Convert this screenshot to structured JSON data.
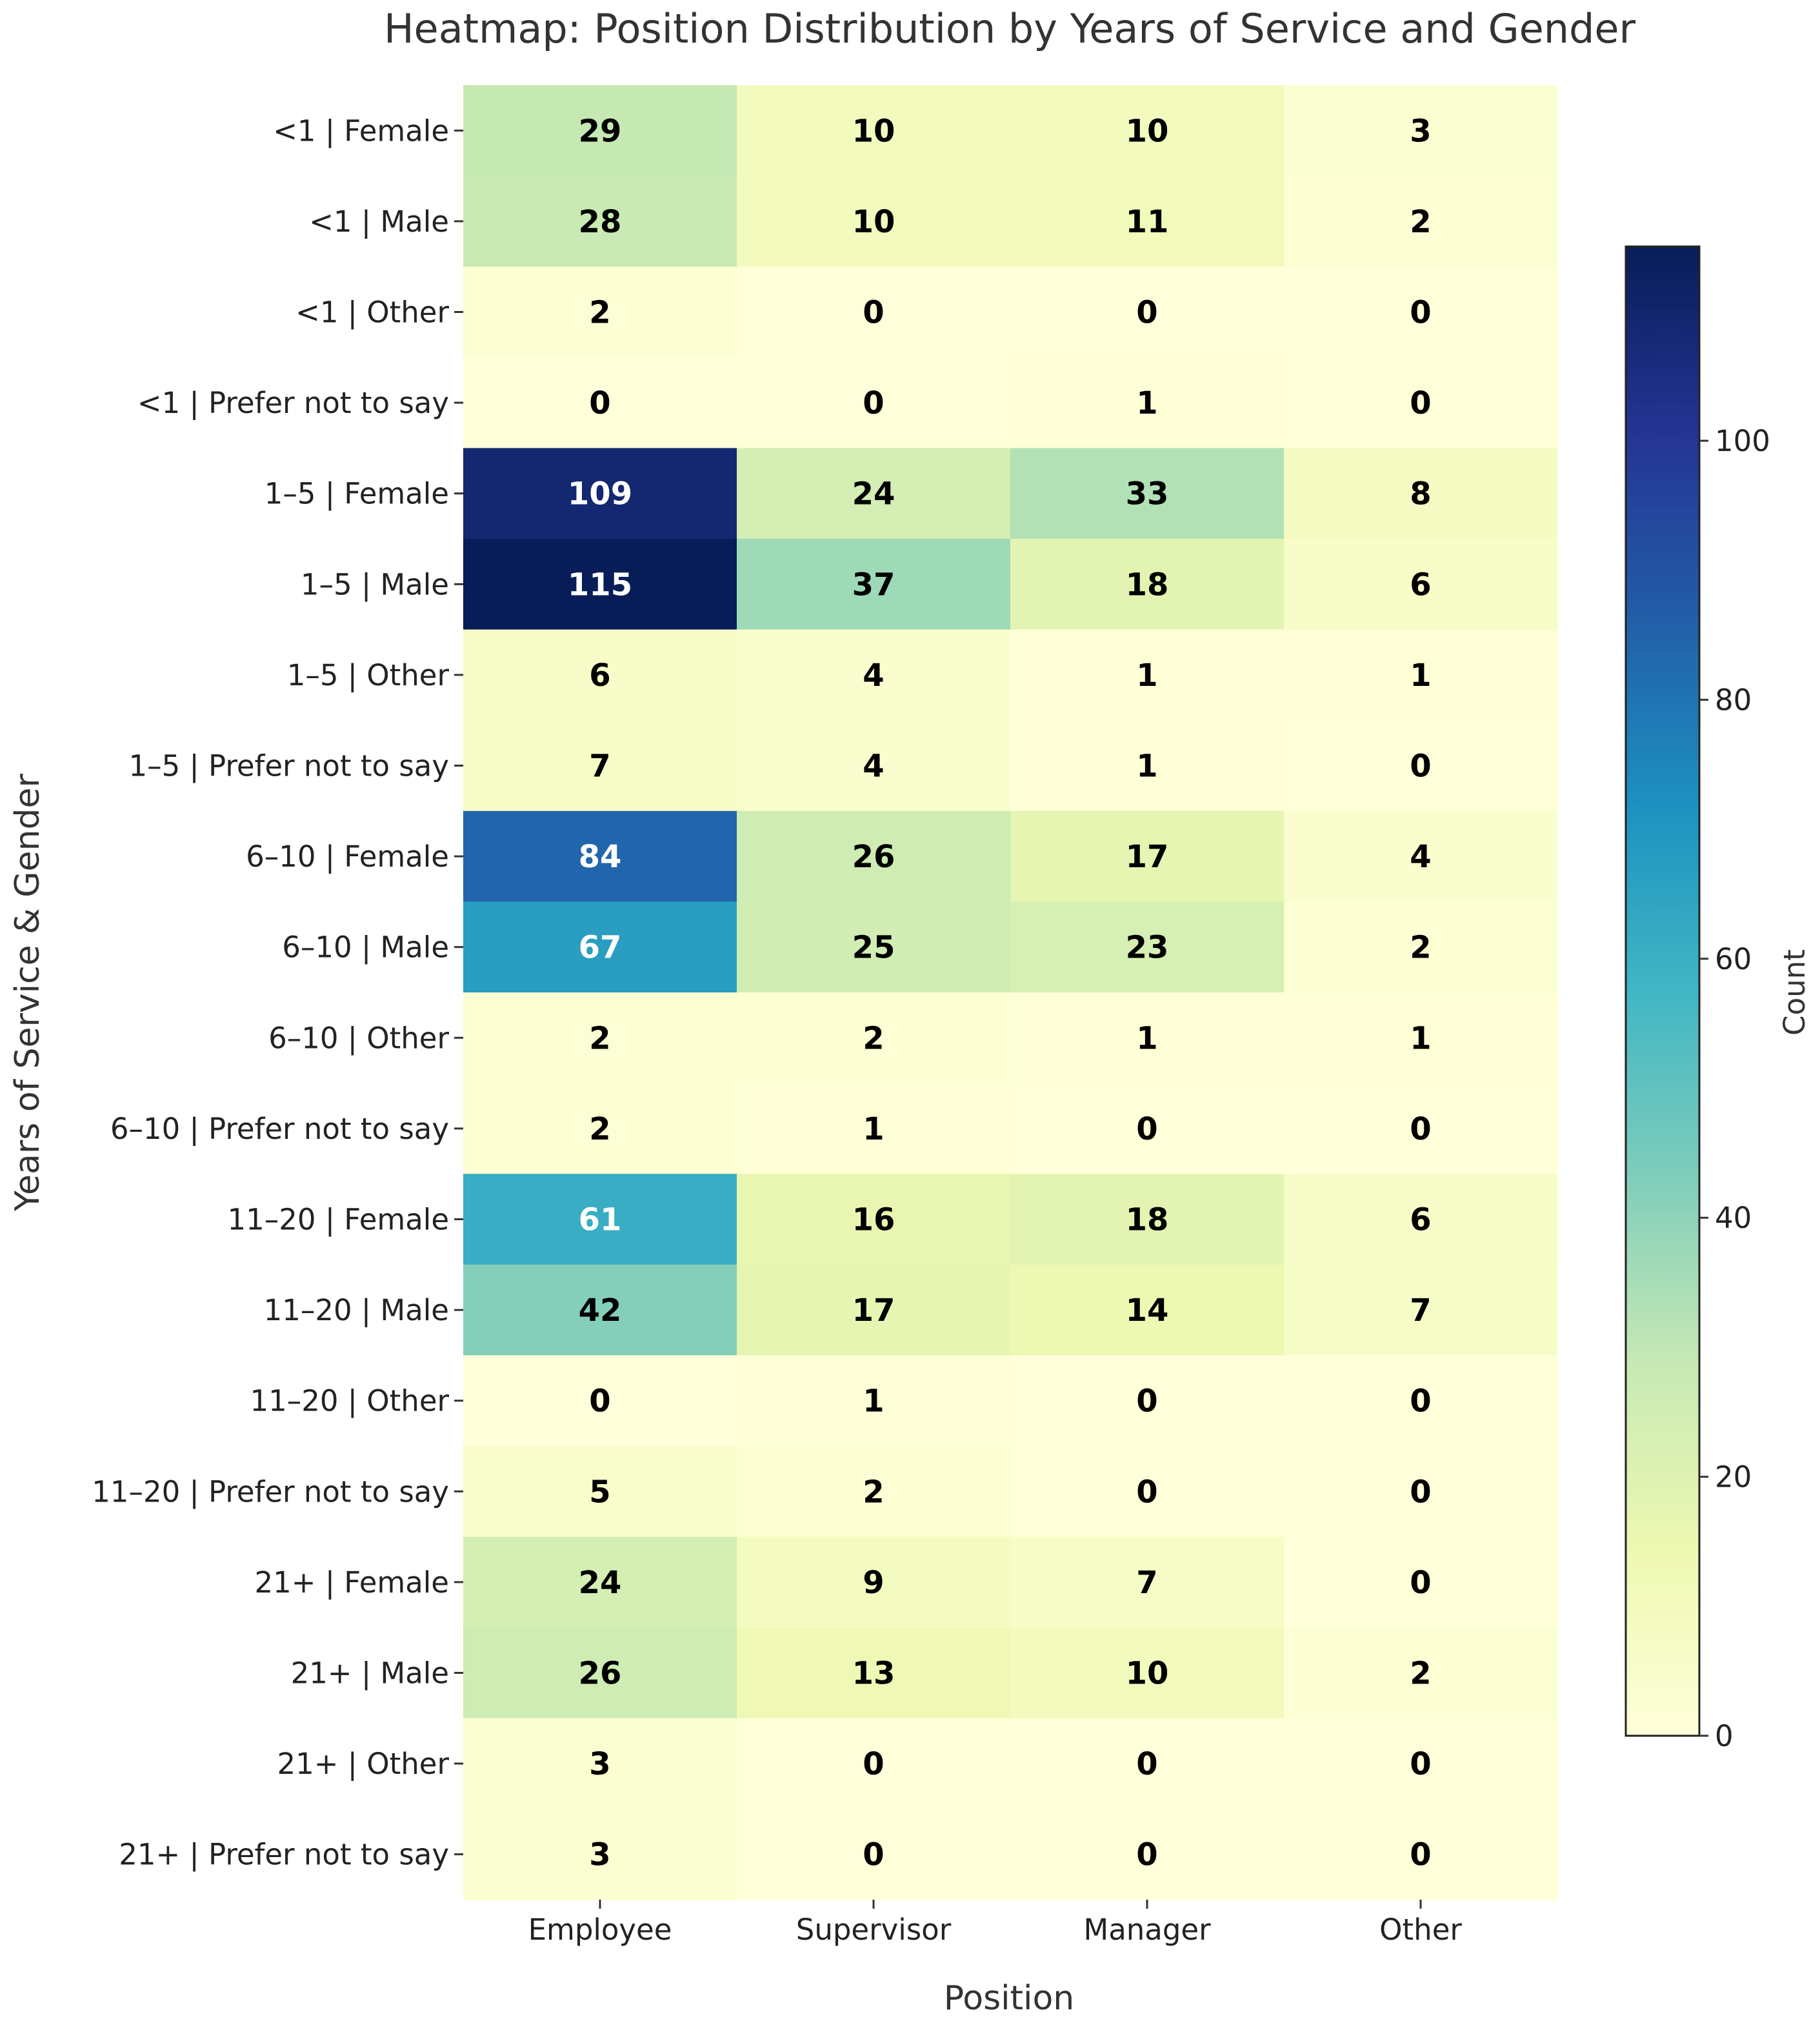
{
  "chart_data": {
    "type": "heatmap",
    "title": "Heatmap: Position Distribution by Years of Service and Gender",
    "xlabel": "Position",
    "ylabel": "Years of Service & Gender",
    "x_categories": [
      "Employee",
      "Supervisor",
      "Manager",
      "Other"
    ],
    "y_categories": [
      "<1 | Female",
      "<1 | Male",
      "<1 | Other",
      "<1 | Prefer not to say",
      "1–5 | Female",
      "1–5 | Male",
      "1–5 | Other",
      "1–5 | Prefer not to say",
      "6–10 | Female",
      "6–10 | Male",
      "6–10 | Other",
      "6–10 | Prefer not to say",
      "11–20 | Female",
      "11–20 | Male",
      "11–20 | Other",
      "11–20 | Prefer not to say",
      "21+ | Female",
      "21+ | Male",
      "21+ | Other",
      "21+ | Prefer not to say"
    ],
    "values": [
      [
        29,
        10,
        10,
        3
      ],
      [
        28,
        10,
        11,
        2
      ],
      [
        2,
        0,
        0,
        0
      ],
      [
        0,
        0,
        1,
        0
      ],
      [
        109,
        24,
        33,
        8
      ],
      [
        115,
        37,
        18,
        6
      ],
      [
        6,
        4,
        1,
        1
      ],
      [
        7,
        4,
        1,
        0
      ],
      [
        84,
        26,
        17,
        4
      ],
      [
        67,
        25,
        23,
        2
      ],
      [
        2,
        2,
        1,
        1
      ],
      [
        2,
        1,
        0,
        0
      ],
      [
        61,
        16,
        18,
        6
      ],
      [
        42,
        17,
        14,
        7
      ],
      [
        0,
        1,
        0,
        0
      ],
      [
        5,
        2,
        0,
        0
      ],
      [
        24,
        9,
        7,
        0
      ],
      [
        26,
        13,
        10,
        2
      ],
      [
        3,
        0,
        0,
        0
      ],
      [
        3,
        0,
        0,
        0
      ]
    ],
    "colorbar": {
      "label": "Count",
      "range": [
        0,
        115
      ],
      "ticks": [
        0,
        20,
        40,
        60,
        80,
        100
      ],
      "tick_labels": [
        "0",
        "20",
        "40",
        "60",
        "80",
        "100"
      ],
      "colormap": "YlGnBu",
      "stops": [
        "#ffffd9",
        "#edf8b1",
        "#c7e9b4",
        "#7fcdbb",
        "#41b6c4",
        "#1d91c0",
        "#225ea8",
        "#253494",
        "#081d58"
      ]
    }
  }
}
